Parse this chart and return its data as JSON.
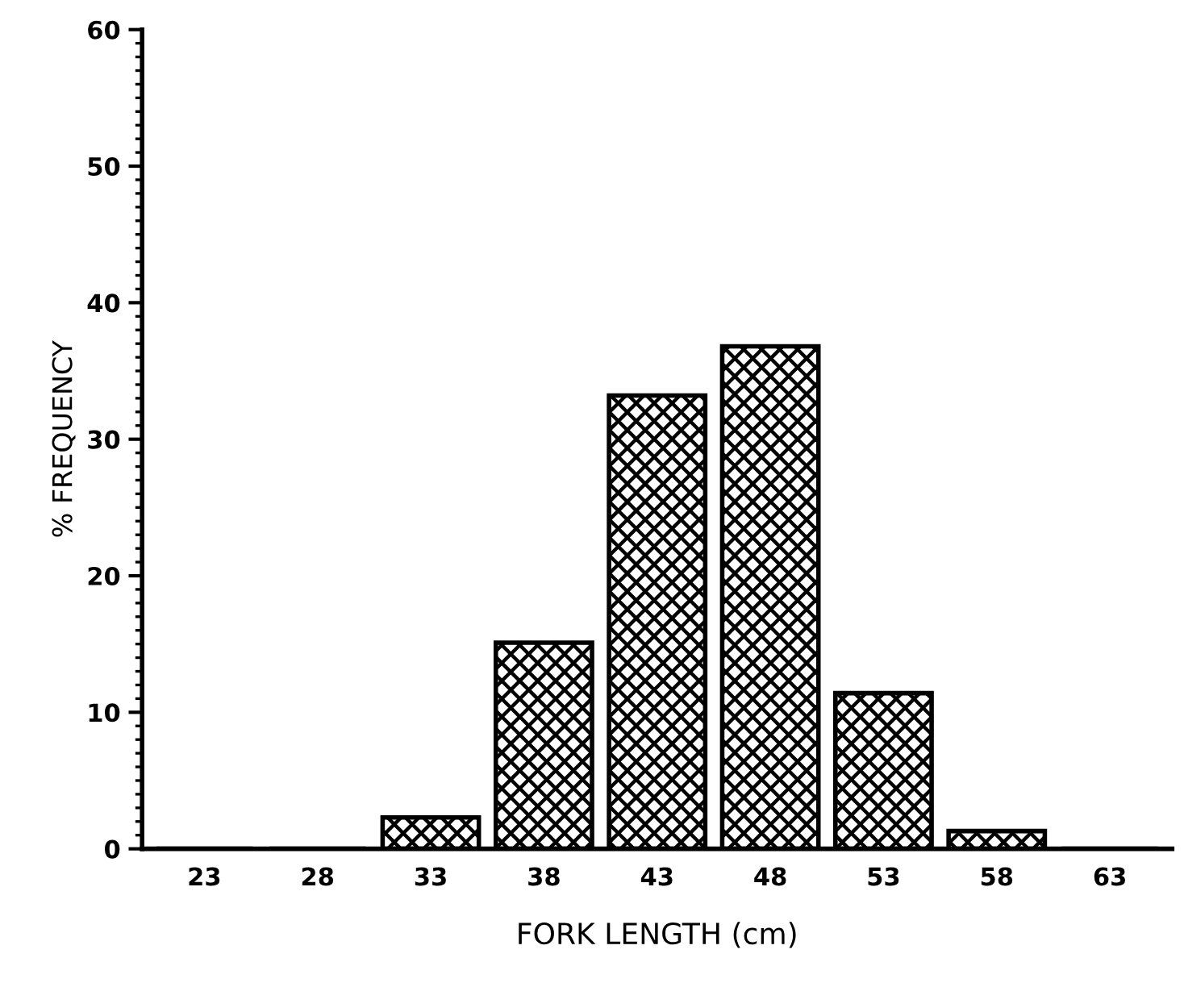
{
  "chart_data": {
    "type": "bar",
    "xlabel": "FORK LENGTH (cm)",
    "ylabel": "% FREQUENCY",
    "categories": [
      "23",
      "28",
      "33",
      "38",
      "43",
      "48",
      "53",
      "58",
      "63"
    ],
    "values": [
      0,
      0,
      2.3,
      15.1,
      33.2,
      36.8,
      11.4,
      1.3,
      0
    ],
    "color": "#000000",
    "ylim": [
      0,
      60
    ],
    "yticks": [
      0,
      10,
      20,
      30,
      40,
      50,
      60
    ],
    "grid": false,
    "legend": false
  }
}
